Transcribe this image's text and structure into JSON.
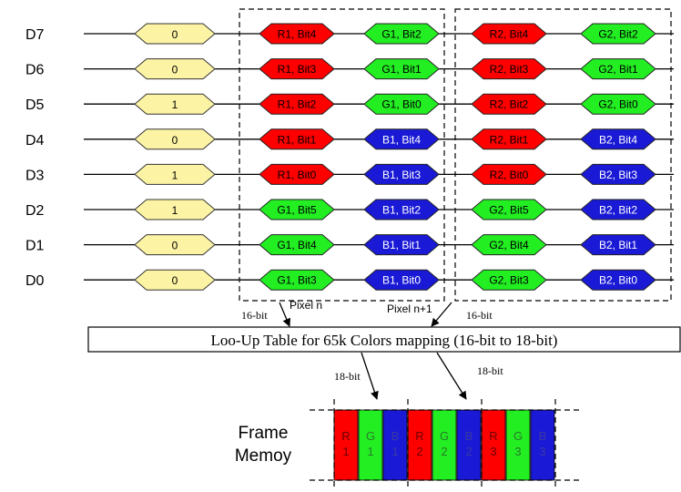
{
  "colors": {
    "constant": "#fdf3a4",
    "red": "#ff0000",
    "green": "#22ee22",
    "blue": "#1a1ad6",
    "line": "#000000"
  },
  "rows": [
    {
      "label": "D7",
      "constant": "0",
      "cells": [
        {
          "text": "R1, Bit4",
          "color": "red"
        },
        {
          "text": "G1, Bit2",
          "color": "green"
        },
        {
          "text": "R2, Bit4",
          "color": "red"
        },
        {
          "text": "G2, Bit2",
          "color": "green"
        }
      ]
    },
    {
      "label": "D6",
      "constant": "0",
      "cells": [
        {
          "text": "R1, Bit3",
          "color": "red"
        },
        {
          "text": "G1, Bit1",
          "color": "green"
        },
        {
          "text": "R2, Bit3",
          "color": "red"
        },
        {
          "text": "G2, Bit1",
          "color": "green"
        }
      ]
    },
    {
      "label": "D5",
      "constant": "1",
      "cells": [
        {
          "text": "R1, Bit2",
          "color": "red"
        },
        {
          "text": "G1, Bit0",
          "color": "green"
        },
        {
          "text": "R2, Bit2",
          "color": "red"
        },
        {
          "text": "G2, Bit0",
          "color": "green"
        }
      ]
    },
    {
      "label": "D4",
      "constant": "0",
      "cells": [
        {
          "text": "R1, Bit1",
          "color": "red"
        },
        {
          "text": "B1, Bit4",
          "color": "blue"
        },
        {
          "text": "R2, Bit1",
          "color": "red"
        },
        {
          "text": "B2, Bit4",
          "color": "blue"
        }
      ]
    },
    {
      "label": "D3",
      "constant": "1",
      "cells": [
        {
          "text": "R1, Bit0",
          "color": "red"
        },
        {
          "text": "B1, Bit3",
          "color": "blue"
        },
        {
          "text": "R2, Bit0",
          "color": "red"
        },
        {
          "text": "B2, Bit3",
          "color": "blue"
        }
      ]
    },
    {
      "label": "D2",
      "constant": "1",
      "cells": [
        {
          "text": "G1, Bit5",
          "color": "green"
        },
        {
          "text": "B1, Bit2",
          "color": "blue"
        },
        {
          "text": "G2, Bit5",
          "color": "green"
        },
        {
          "text": "B2, Bit2",
          "color": "blue"
        }
      ]
    },
    {
      "label": "D1",
      "constant": "0",
      "cells": [
        {
          "text": "G1, Bit4",
          "color": "green"
        },
        {
          "text": "B1, Bit1",
          "color": "blue"
        },
        {
          "text": "G2, Bit4",
          "color": "green"
        },
        {
          "text": "B2, Bit1",
          "color": "blue"
        }
      ]
    },
    {
      "label": "D0",
      "constant": "0",
      "cells": [
        {
          "text": "G1, Bit3",
          "color": "green"
        },
        {
          "text": "B1, Bit0",
          "color": "blue"
        },
        {
          "text": "G2, Bit3",
          "color": "green"
        },
        {
          "text": "B2, Bit0",
          "color": "blue"
        }
      ]
    }
  ],
  "pixel_labels": [
    "Pixel n",
    "Pixel n+1"
  ],
  "input_bits_labels": [
    "16-bit",
    "16-bit"
  ],
  "lut_label": "Loo-Up Table for 65k Colors mapping (16-bit to 18-bit)",
  "output_bits_labels": [
    "18-bit",
    "18-bit"
  ],
  "frame_memory_label": [
    "Frame",
    "Memoy"
  ],
  "memory_cells": [
    {
      "letter": "R",
      "num": "1",
      "color": "red"
    },
    {
      "letter": "G",
      "num": "1",
      "color": "green"
    },
    {
      "letter": "B",
      "num": "1",
      "color": "blue"
    },
    {
      "letter": "R",
      "num": "2",
      "color": "red"
    },
    {
      "letter": "G",
      "num": "2",
      "color": "green"
    },
    {
      "letter": "B",
      "num": "2",
      "color": "blue"
    },
    {
      "letter": "R",
      "num": "3",
      "color": "red"
    },
    {
      "letter": "G",
      "num": "3",
      "color": "green"
    },
    {
      "letter": "B",
      "num": "3",
      "color": "blue"
    }
  ]
}
